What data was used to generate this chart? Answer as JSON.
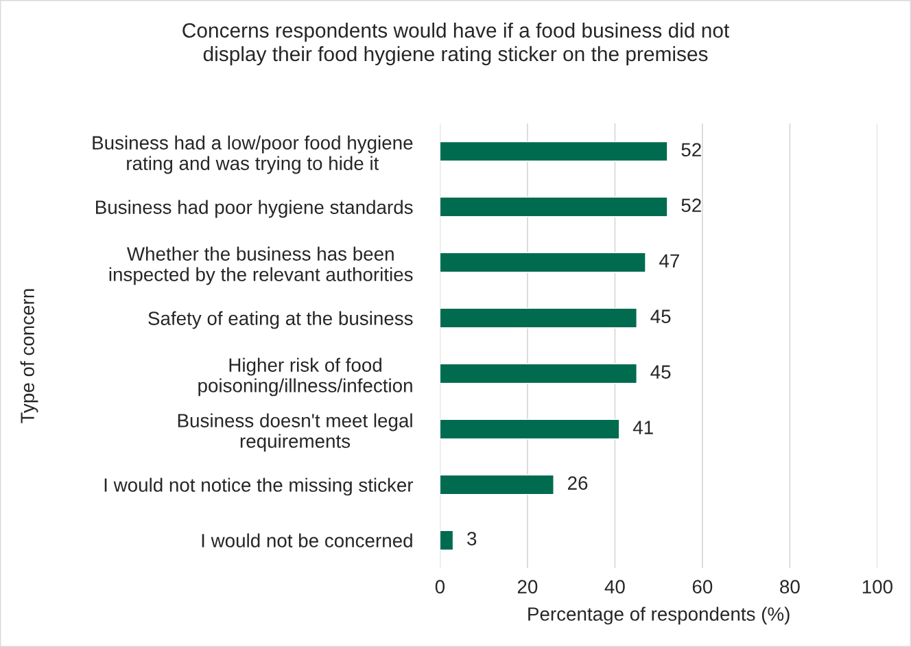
{
  "chart_data": {
    "type": "bar",
    "orientation": "horizontal",
    "title": "Concerns respondents would have if a food business did not\ndisplay their food hygiene rating sticker on the premises",
    "xlabel": "Percentage of respondents (%)",
    "ylabel": "Type of concern",
    "categories": [
      "Business had a low/poor food hygiene\nrating and was trying to hide it",
      "Business had poor hygiene standards",
      "Whether the business has been\ninspected by the relevant authorities",
      "Safety of eating at the business",
      "Higher risk of food\npoisoning/illness/infection",
      "Business doesn't meet legal\nrequirements",
      "I would not notice the missing sticker",
      "I would not be concerned"
    ],
    "values": [
      52,
      52,
      47,
      45,
      45,
      41,
      26,
      3
    ],
    "color": "#006b4f",
    "xlim": [
      0,
      100
    ],
    "xticks": [
      0,
      20,
      40,
      60,
      80,
      100
    ],
    "grid": "x",
    "data_labels": true,
    "legend": false
  }
}
